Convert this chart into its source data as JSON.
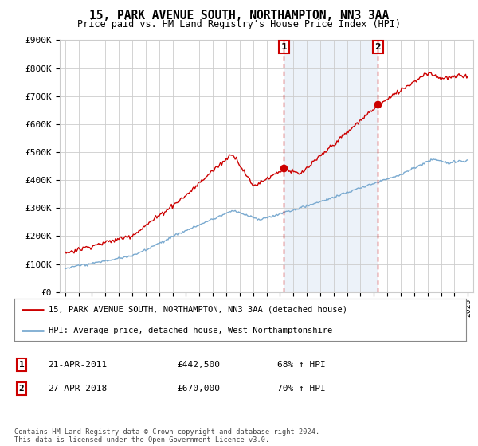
{
  "title": "15, PARK AVENUE SOUTH, NORTHAMPTON, NN3 3AA",
  "subtitle": "Price paid vs. HM Land Registry's House Price Index (HPI)",
  "ylim": [
    0,
    900000
  ],
  "yticks": [
    0,
    100000,
    200000,
    300000,
    400000,
    500000,
    600000,
    700000,
    800000,
    900000
  ],
  "ytick_labels": [
    "£0",
    "£100K",
    "£200K",
    "£300K",
    "£400K",
    "£500K",
    "£600K",
    "£700K",
    "£800K",
    "£900K"
  ],
  "xlim_start": 1994.6,
  "xlim_end": 2025.4,
  "purchase1_price": 442500,
  "purchase1_year": 2011.3,
  "purchase2_price": 670000,
  "purchase2_year": 2018.3,
  "legend_line1": "15, PARK AVENUE SOUTH, NORTHAMPTON, NN3 3AA (detached house)",
  "legend_line2": "HPI: Average price, detached house, West Northamptonshire",
  "table_row1_label": "1",
  "table_row1_date": "21-APR-2011",
  "table_row1_price": "£442,500",
  "table_row1_hpi": "68% ↑ HPI",
  "table_row2_label": "2",
  "table_row2_date": "27-APR-2018",
  "table_row2_price": "£670,000",
  "table_row2_hpi": "70% ↑ HPI",
  "footer": "Contains HM Land Registry data © Crown copyright and database right 2024.\nThis data is licensed under the Open Government Licence v3.0.",
  "red_color": "#cc0000",
  "blue_color": "#7aaad0",
  "grid_color": "#cccccc",
  "bg_color": "#ffffff",
  "highlight_bg": "#dde8f5",
  "marker_color": "#cc0000"
}
